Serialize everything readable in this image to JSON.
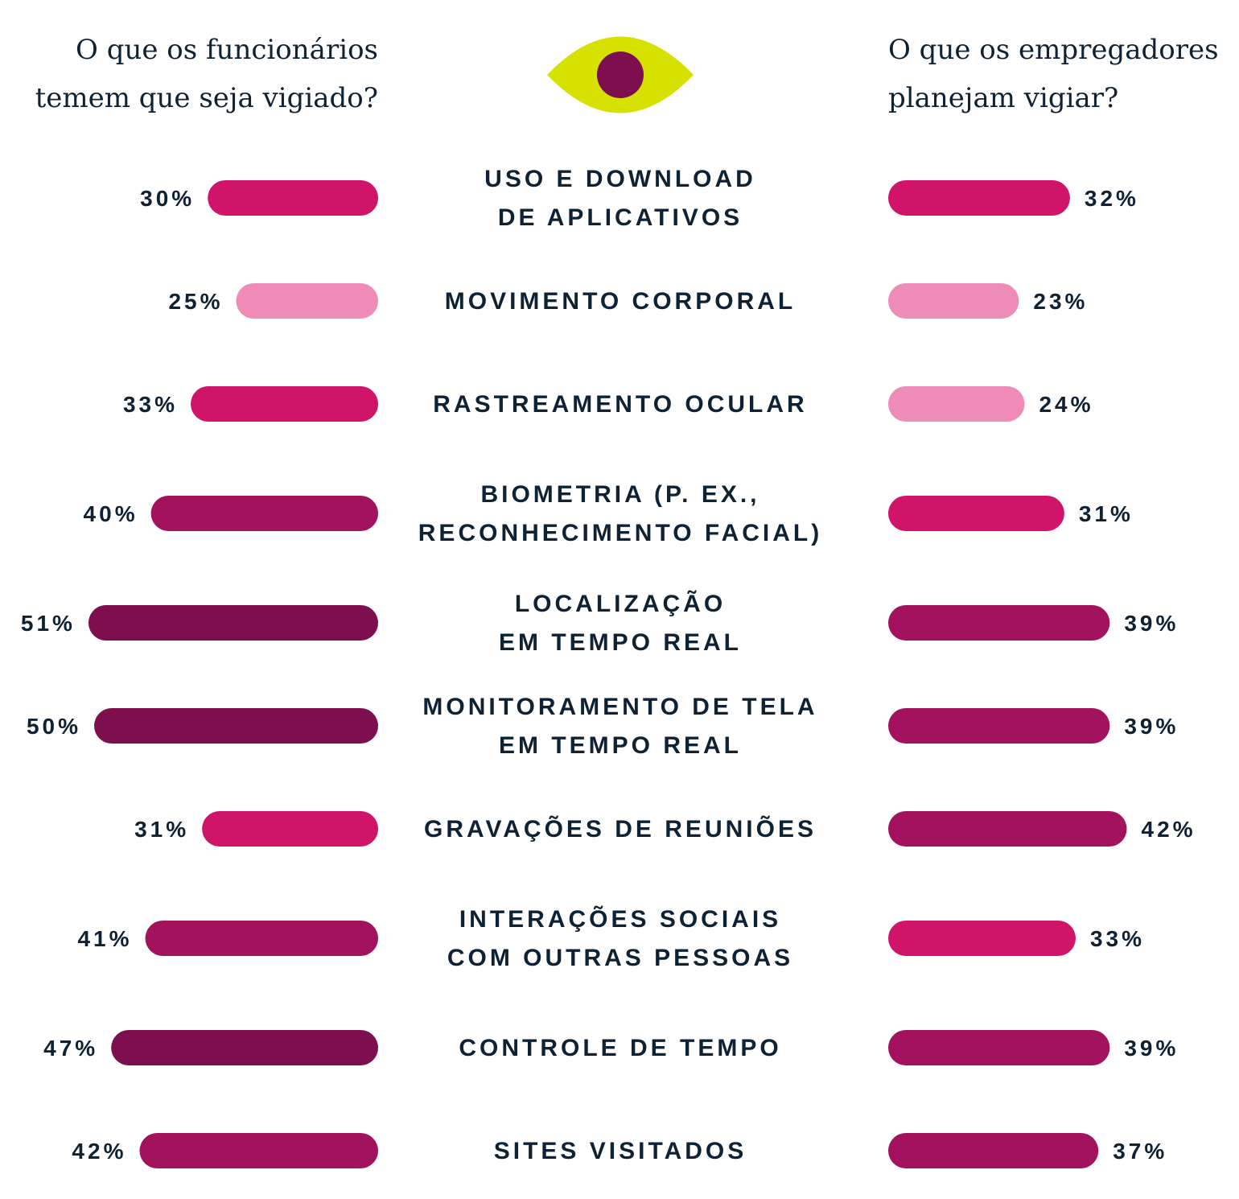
{
  "header": {
    "left_line1": "O que os funcionários",
    "left_line2": "temem que seja vigiado?",
    "right_line1": "O que os empregadores",
    "right_line2": "planejam vigiar?"
  },
  "icon": "eye-icon",
  "colors": {
    "eye": "#d7e100",
    "pupil": "#7e0f4e",
    "pale": "#ee8cb7",
    "bright": "#d0146a",
    "medium": "#a3125d",
    "dark": "#7e0f4e",
    "text": "#0f2233"
  },
  "chart_data": {
    "type": "bar",
    "orientation": "horizontal-mirrored",
    "categories": [
      [
        "USO E DOWNLOAD",
        "DE APLICATIVOS"
      ],
      [
        "MOVIMENTO CORPORAL"
      ],
      [
        "RASTREAMENTO OCULAR"
      ],
      [
        "BIOMETRIA (P. EX.,",
        "RECONHECIMENTO FACIAL)"
      ],
      [
        "LOCALIZAÇÃO",
        "EM TEMPO REAL"
      ],
      [
        "MONITORAMENTO DE TELA",
        "EM TEMPO REAL"
      ],
      [
        "GRAVAÇÕES DE REUNIÕES"
      ],
      [
        "INTERAÇÕES SOCIAIS",
        "COM OUTRAS PESSOAS"
      ],
      [
        "CONTROLE DE TEMPO"
      ],
      [
        "SITES VISITADOS"
      ]
    ],
    "series": [
      {
        "name": "O que os funcionários temem que seja vigiado?",
        "values": [
          30,
          25,
          33,
          40,
          51,
          50,
          31,
          41,
          47,
          42
        ],
        "labels": [
          "30%",
          "25%",
          "33%",
          "40%",
          "51%",
          "50%",
          "31%",
          "41%",
          "47%",
          "42%"
        ]
      },
      {
        "name": "O que os empregadores planejam vigiar?",
        "values": [
          32,
          23,
          24,
          31,
          39,
          39,
          42,
          33,
          39,
          37
        ],
        "labels": [
          "32%",
          "23%",
          "24%",
          "31%",
          "39%",
          "39%",
          "42%",
          "33%",
          "39%",
          "37%"
        ]
      }
    ],
    "unit": "%"
  }
}
